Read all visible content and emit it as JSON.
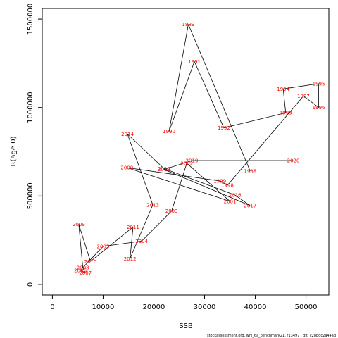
{
  "chart_data": {
    "type": "line",
    "xlabel": "SSB",
    "ylabel": "R(age 0)",
    "xlim": [
      -2000,
      54500
    ],
    "ylim": [
      -60000,
      1560000
    ],
    "x_ticks": [
      0,
      10000,
      20000,
      30000,
      40000,
      50000
    ],
    "y_ticks": [
      0,
      500000,
      1000000,
      1500000
    ],
    "grid": false,
    "point_label_color": "#ff0000",
    "line_color": "#000000",
    "points": [
      {
        "label": "1988",
        "x": 39000,
        "y": 640000
      },
      {
        "label": "1989",
        "x": 26800,
        "y": 1470000
      },
      {
        "label": "1990",
        "x": 23000,
        "y": 865000
      },
      {
        "label": "1991",
        "x": 28000,
        "y": 1260000
      },
      {
        "label": "1992",
        "x": 33800,
        "y": 885000
      },
      {
        "label": "1993",
        "x": 46000,
        "y": 970000
      },
      {
        "label": "1994",
        "x": 45500,
        "y": 1105000
      },
      {
        "label": "1995",
        "x": 52500,
        "y": 1135000
      },
      {
        "label": "1996",
        "x": 52500,
        "y": 1000000
      },
      {
        "label": "1997",
        "x": 49500,
        "y": 1065000
      },
      {
        "label": "1998",
        "x": 34500,
        "y": 560000
      },
      {
        "label": "1999",
        "x": 33000,
        "y": 585000
      },
      {
        "label": "2000",
        "x": 14700,
        "y": 660000
      },
      {
        "label": "2001",
        "x": 35000,
        "y": 470000
      },
      {
        "label": "2002",
        "x": 26500,
        "y": 685000
      },
      {
        "label": "2003",
        "x": 23500,
        "y": 415000
      },
      {
        "label": "2004",
        "x": 17600,
        "y": 245000
      },
      {
        "label": "2005",
        "x": 10000,
        "y": 215000
      },
      {
        "label": "2006",
        "x": 5500,
        "y": 80000
      },
      {
        "label": "2007",
        "x": 6500,
        "y": 65000
      },
      {
        "label": "2008",
        "x": 6000,
        "y": 95000
      },
      {
        "label": "2009",
        "x": 5200,
        "y": 340000
      },
      {
        "label": "2010",
        "x": 7500,
        "y": 130000
      },
      {
        "label": "2011",
        "x": 15900,
        "y": 325000
      },
      {
        "label": "2012",
        "x": 15300,
        "y": 145000
      },
      {
        "label": "2013",
        "x": 19800,
        "y": 450000
      },
      {
        "label": "2014",
        "x": 14800,
        "y": 850000
      },
      {
        "label": "2015",
        "x": 22000,
        "y": 655000
      },
      {
        "label": "2016",
        "x": 36000,
        "y": 505000
      },
      {
        "label": "2017",
        "x": 39000,
        "y": 445000
      },
      {
        "label": "2018",
        "x": 22000,
        "y": 650000
      },
      {
        "label": "2019",
        "x": 27500,
        "y": 700000
      },
      {
        "label": "2020",
        "x": 47500,
        "y": 700000
      }
    ]
  },
  "footer": "stockassessment.org, whi_6a_benchmark21, r13497 , git: c28bdc2a44ad"
}
